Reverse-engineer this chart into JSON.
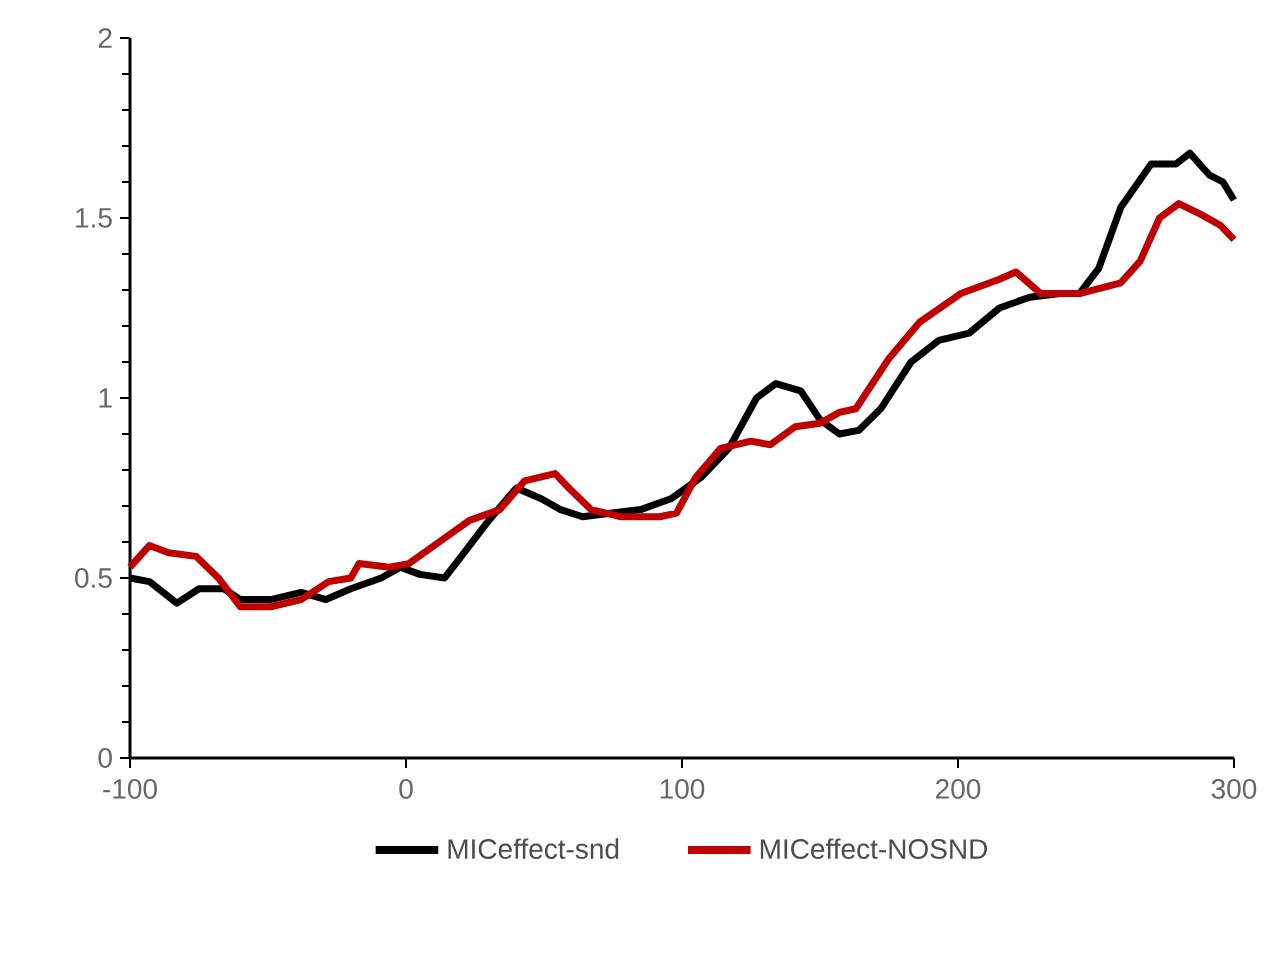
{
  "chart_data": {
    "type": "line",
    "xlim": [
      -100,
      300
    ],
    "ylim": [
      0,
      2
    ],
    "xticks": [
      -100,
      0,
      100,
      200,
      300
    ],
    "yticks": [
      0,
      0.5,
      1,
      1.5,
      2
    ],
    "grid": false,
    "legend": "bottom",
    "marker": "none",
    "line_style": "solid",
    "series": [
      {
        "name": "MICeffect-snd",
        "color": "#000000",
        "x": [
          -100,
          -93,
          -83,
          -75,
          -66,
          -60,
          -49,
          -38,
          -29,
          -20,
          -9,
          -2,
          5,
          14,
          21,
          30,
          40,
          49,
          56,
          64,
          74,
          85,
          96,
          107,
          117,
          127,
          134,
          143,
          150,
          157,
          164,
          172,
          183,
          193,
          204,
          215,
          226,
          237,
          244,
          251,
          259,
          270,
          279,
          284,
          291,
          296,
          300
        ],
        "values": [
          0.5,
          0.49,
          0.43,
          0.47,
          0.47,
          0.44,
          0.44,
          0.46,
          0.44,
          0.47,
          0.5,
          0.53,
          0.51,
          0.5,
          0.57,
          0.66,
          0.75,
          0.72,
          0.69,
          0.67,
          0.68,
          0.69,
          0.72,
          0.78,
          0.86,
          1.0,
          1.04,
          1.02,
          0.94,
          0.9,
          0.91,
          0.97,
          1.1,
          1.16,
          1.18,
          1.25,
          1.28,
          1.29,
          1.29,
          1.36,
          1.53,
          1.65,
          1.65,
          1.68,
          1.62,
          1.6,
          1.55
        ]
      },
      {
        "name": "MICeffect-NOSND",
        "color": "#c00000",
        "x": [
          -100,
          -93,
          -86,
          -76,
          -68,
          -60,
          -49,
          -38,
          -28,
          -20,
          -17,
          -6,
          1,
          12,
          23,
          34,
          43,
          54,
          59,
          67,
          78,
          92,
          98,
          105,
          114,
          125,
          132,
          141,
          150,
          157,
          163,
          175,
          186,
          201,
          215,
          221,
          230,
          244,
          259,
          266,
          273,
          280,
          288,
          295,
          300
        ],
        "values": [
          0.53,
          0.59,
          0.57,
          0.56,
          0.5,
          0.42,
          0.42,
          0.44,
          0.49,
          0.5,
          0.54,
          0.53,
          0.54,
          0.6,
          0.66,
          0.69,
          0.77,
          0.79,
          0.75,
          0.69,
          0.67,
          0.67,
          0.68,
          0.78,
          0.86,
          0.88,
          0.87,
          0.92,
          0.93,
          0.96,
          0.97,
          1.11,
          1.21,
          1.29,
          1.33,
          1.35,
          1.29,
          1.29,
          1.32,
          1.38,
          1.5,
          1.54,
          1.51,
          1.48,
          1.44
        ]
      }
    ]
  }
}
